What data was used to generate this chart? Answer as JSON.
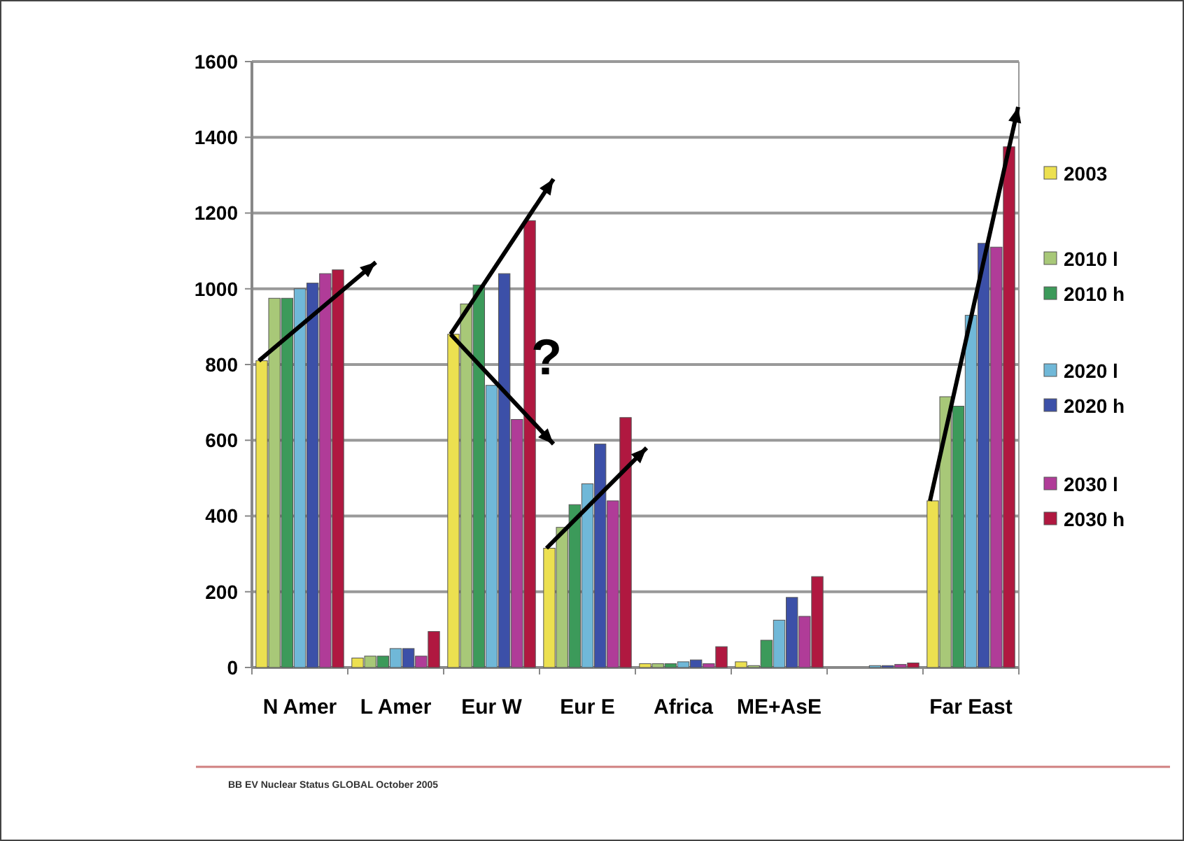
{
  "chart_data": {
    "type": "bar",
    "categories": [
      "N Amer",
      "L Amer",
      "Eur W",
      "Eur E",
      "Africa",
      "ME+AsE",
      null,
      "Far East"
    ],
    "series": [
      {
        "name": "2003",
        "color": "#ece050",
        "values": [
          810,
          25,
          880,
          315,
          10,
          15,
          0,
          440
        ]
      },
      {
        "name": "2010 l",
        "color": "#a8c878",
        "values": [
          975,
          30,
          960,
          370,
          10,
          5,
          0,
          715
        ]
      },
      {
        "name": "2010 h",
        "color": "#3c9a5a",
        "values": [
          975,
          30,
          1010,
          430,
          10,
          72,
          0,
          690
        ]
      },
      {
        "name": "2020 l",
        "color": "#70b8d8",
        "values": [
          1000,
          50,
          745,
          485,
          15,
          125,
          5,
          930
        ]
      },
      {
        "name": "2020 h",
        "color": "#3c50a8",
        "values": [
          1015,
          50,
          1040,
          590,
          20,
          185,
          5,
          1120
        ]
      },
      {
        "name": "2030 l",
        "color": "#b03c98",
        "values": [
          1040,
          30,
          655,
          440,
          10,
          135,
          8,
          1110
        ]
      },
      {
        "name": "2030 h",
        "color": "#b01840",
        "values": [
          1050,
          95,
          1180,
          660,
          55,
          240,
          12,
          1375
        ]
      }
    ],
    "ylim": [
      0,
      1600
    ],
    "yticks": [
      0,
      200,
      400,
      600,
      800,
      1000,
      1200,
      1400,
      1600
    ],
    "grid": "y",
    "legend": "right",
    "annotations": [
      {
        "text": "?",
        "x": "Eur W",
        "y": 820
      },
      "BB EV Nuclear Status GLOBAL October 2005"
    ]
  }
}
